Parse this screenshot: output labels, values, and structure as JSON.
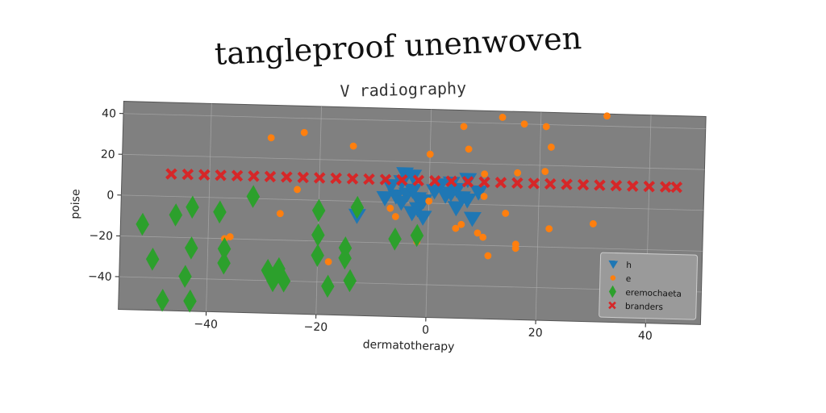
{
  "chart_data": {
    "type": "scatter",
    "title": "tangleproof unenwoven",
    "subtitle": "V radiography",
    "xlabel": "dermatotherapy",
    "ylabel": "poise",
    "xlim": [
      -56,
      50
    ],
    "ylim": [
      -56,
      46
    ],
    "x_ticks": [
      -40,
      -20,
      0,
      20,
      40
    ],
    "y_ticks": [
      -40,
      -20,
      0,
      20,
      40
    ],
    "grid": true,
    "legend_position": "bottom-right",
    "colors": {
      "plot_background": "#808080",
      "grid": "#b0b0b0"
    },
    "series": [
      {
        "name": "h",
        "marker": "triangle-down",
        "color": "#1f77b4",
        "points": [
          {
            "x": -4.5,
            "y": 14
          },
          {
            "x": -3,
            "y": 13
          },
          {
            "x": -5,
            "y": 10
          },
          {
            "x": -7,
            "y": 8
          },
          {
            "x": -6,
            "y": 3
          },
          {
            "x": -4,
            "y": 4
          },
          {
            "x": -3,
            "y": 6
          },
          {
            "x": -2,
            "y": 2
          },
          {
            "x": -1,
            "y": 1
          },
          {
            "x": -2,
            "y": -3
          },
          {
            "x": -1,
            "y": -7
          },
          {
            "x": -3,
            "y": -5
          },
          {
            "x": -5,
            "y": 0
          },
          {
            "x": -8,
            "y": 2
          },
          {
            "x": 1,
            "y": 6
          },
          {
            "x": 2,
            "y": 9
          },
          {
            "x": 3,
            "y": 4
          },
          {
            "x": 4,
            "y": 5
          },
          {
            "x": 5,
            "y": 7
          },
          {
            "x": 6,
            "y": 3
          },
          {
            "x": 7,
            "y": 2
          },
          {
            "x": 5,
            "y": -2
          },
          {
            "x": 7,
            "y": 12
          },
          {
            "x": 9,
            "y": 6
          },
          {
            "x": 8,
            "y": -7
          },
          {
            "x": -13,
            "y": -7
          },
          {
            "x": 4,
            "y": 10
          }
        ]
      },
      {
        "name": "e",
        "marker": "circle",
        "color": "#ff7f0e",
        "points": [
          {
            "x": 13,
            "y": 43
          },
          {
            "x": 17,
            "y": 40
          },
          {
            "x": 21,
            "y": 39
          },
          {
            "x": 32,
            "y": 45
          },
          {
            "x": 6,
            "y": 38
          },
          {
            "x": -29,
            "y": 30
          },
          {
            "x": -23,
            "y": 33
          },
          {
            "x": -14,
            "y": 27
          },
          {
            "x": 0,
            "y": 24
          },
          {
            "x": 7,
            "y": 27
          },
          {
            "x": 22,
            "y": 29
          },
          {
            "x": 10,
            "y": 15
          },
          {
            "x": 16,
            "y": 16
          },
          {
            "x": 21,
            "y": 17
          },
          {
            "x": -24,
            "y": 5
          },
          {
            "x": 10,
            "y": 4
          },
          {
            "x": -7,
            "y": -3
          },
          {
            "x": -6,
            "y": -7
          },
          {
            "x": -27,
            "y": -7
          },
          {
            "x": 0,
            "y": 1
          },
          {
            "x": 14,
            "y": -4
          },
          {
            "x": -37,
            "y": -20
          },
          {
            "x": -36,
            "y": -19
          },
          {
            "x": -2,
            "y": -19
          },
          {
            "x": 5,
            "y": -12
          },
          {
            "x": 6,
            "y": -10
          },
          {
            "x": 9,
            "y": -14
          },
          {
            "x": 10,
            "y": -16
          },
          {
            "x": 16,
            "y": -19
          },
          {
            "x": 16,
            "y": -21
          },
          {
            "x": 22,
            "y": -11
          },
          {
            "x": 30,
            "y": -8
          },
          {
            "x": 11,
            "y": -25
          },
          {
            "x": -18,
            "y": -30
          }
        ]
      },
      {
        "name": "eremochaeta",
        "marker": "thin-diamond",
        "color": "#2ca02c",
        "points": [
          {
            "x": -32,
            "y": 1
          },
          {
            "x": -43,
            "y": -5
          },
          {
            "x": -38,
            "y": -7
          },
          {
            "x": -46,
            "y": -9
          },
          {
            "x": -52,
            "y": -14
          },
          {
            "x": -20,
            "y": -5
          },
          {
            "x": -13,
            "y": -3
          },
          {
            "x": -20,
            "y": -17
          },
          {
            "x": -43,
            "y": -25
          },
          {
            "x": -37,
            "y": -25
          },
          {
            "x": -50,
            "y": -31
          },
          {
            "x": -37,
            "y": -32
          },
          {
            "x": -20,
            "y": -27
          },
          {
            "x": -15,
            "y": -23
          },
          {
            "x": -15,
            "y": -28
          },
          {
            "x": -27,
            "y": -34
          },
          {
            "x": -29,
            "y": -35
          },
          {
            "x": -26,
            "y": -40
          },
          {
            "x": -28,
            "y": -40
          },
          {
            "x": -44,
            "y": -39
          },
          {
            "x": -18,
            "y": -42
          },
          {
            "x": -14,
            "y": -39
          },
          {
            "x": -48,
            "y": -51
          },
          {
            "x": -43,
            "y": -51
          },
          {
            "x": -6,
            "y": -18
          },
          {
            "x": -2,
            "y": -16
          }
        ]
      },
      {
        "name": "branders",
        "marker": "x-filled",
        "color": "#d62728",
        "points": [
          {
            "x": -47,
            "y": 11
          },
          {
            "x": -44,
            "y": 11
          },
          {
            "x": -41,
            "y": 11
          },
          {
            "x": -38,
            "y": 11
          },
          {
            "x": -35,
            "y": 11
          },
          {
            "x": -32,
            "y": 11
          },
          {
            "x": -29,
            "y": 11
          },
          {
            "x": -26,
            "y": 11
          },
          {
            "x": -23,
            "y": 11
          },
          {
            "x": -20,
            "y": 11
          },
          {
            "x": -17,
            "y": 11
          },
          {
            "x": -14,
            "y": 11
          },
          {
            "x": -11,
            "y": 11
          },
          {
            "x": -8,
            "y": 11
          },
          {
            "x": -5,
            "y": 11
          },
          {
            "x": -2,
            "y": 11
          },
          {
            "x": 1,
            "y": 11
          },
          {
            "x": 4,
            "y": 11
          },
          {
            "x": 7,
            "y": 11
          },
          {
            "x": 10,
            "y": 11
          },
          {
            "x": 13,
            "y": 11
          },
          {
            "x": 16,
            "y": 11
          },
          {
            "x": 19,
            "y": 11
          },
          {
            "x": 22,
            "y": 11
          },
          {
            "x": 25,
            "y": 11
          },
          {
            "x": 28,
            "y": 11
          },
          {
            "x": 31,
            "y": 11
          },
          {
            "x": 34,
            "y": 11
          },
          {
            "x": 37,
            "y": 11
          },
          {
            "x": 40,
            "y": 11
          },
          {
            "x": 43,
            "y": 11
          },
          {
            "x": 45,
            "y": 11
          }
        ]
      }
    ]
  }
}
